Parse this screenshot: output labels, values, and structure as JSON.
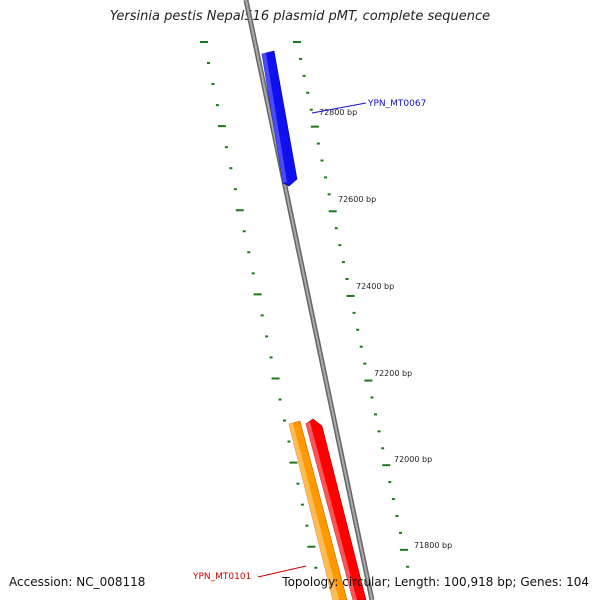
{
  "title": "Yersinia pestis Nepal516 plasmid pMT, complete sequence",
  "accession": "Accession: NC_008118",
  "topology": "Topology: circular; Length: 100,918 bp; Genes: 104",
  "ruler_labels": [
    "72800 bp",
    "72600 bp",
    "72400 bp",
    "72200 bp",
    "72000 bp",
    "71800 bp"
  ],
  "genes": [
    {
      "name": "YPN_MT0067",
      "color": "#1010ee",
      "label_color": "#1010cc"
    },
    {
      "name": "YPN_MT0101",
      "color": "#ff0000",
      "label_color": "#cc0000"
    }
  ],
  "colors": {
    "backbone": "#888888",
    "ticks": "#1a7a1a",
    "orange_gene": "#ff9900",
    "red_gene": "#ff0000",
    "blue_gene": "#1010ee"
  }
}
